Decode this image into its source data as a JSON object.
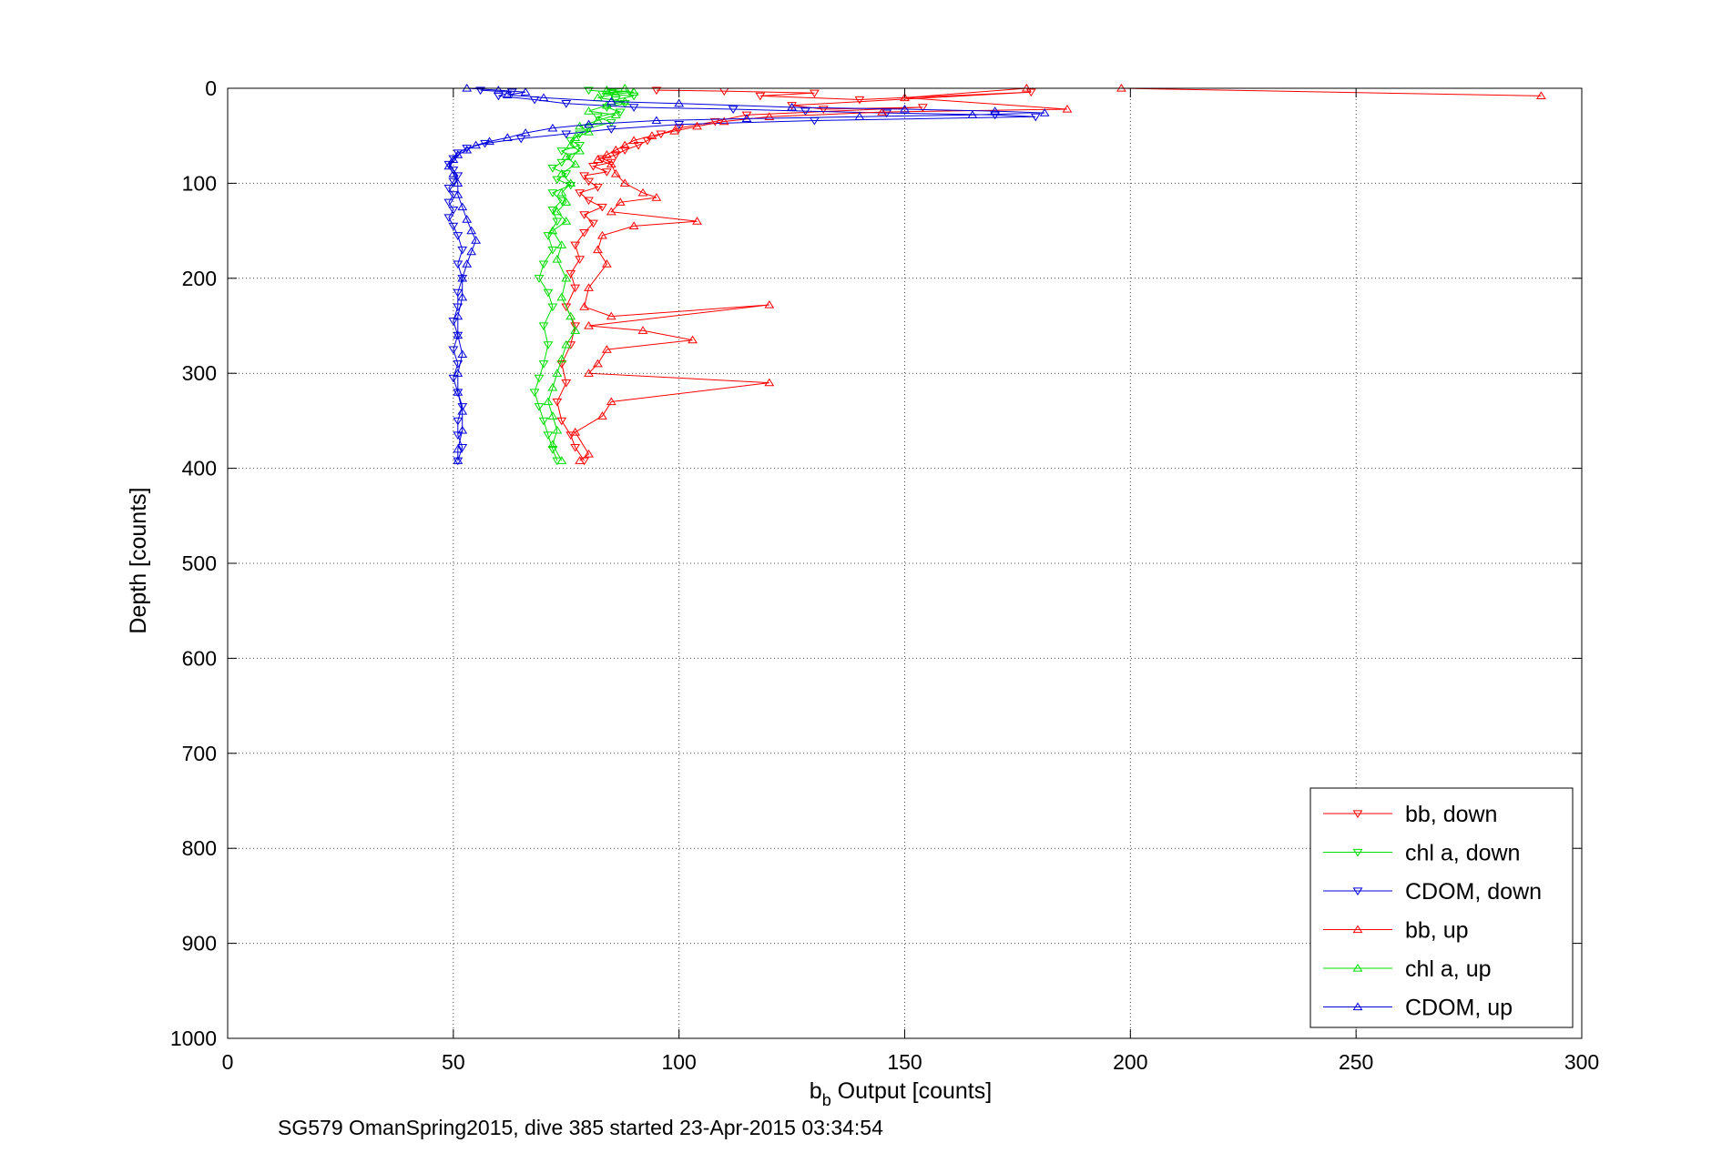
{
  "chart_data": {
    "type": "line",
    "xlabel_main": "b",
    "xlabel_sub": "b",
    "xlabel_rest": " Output [counts]",
    "ylabel": "Depth [counts]",
    "caption": "SG579 OmanSpring2015, dive 385 started 23-Apr-2015 03:34:54",
    "xlim": [
      0,
      300
    ],
    "ylim": [
      0,
      1000
    ],
    "y_reversed": true,
    "grid": true,
    "legend_position": "bottom-right",
    "xticks": [
      "0",
      "50",
      "100",
      "150",
      "200",
      "250",
      "300"
    ],
    "yticks": [
      "0",
      "100",
      "200",
      "300",
      "400",
      "500",
      "600",
      "700",
      "800",
      "900",
      "1000"
    ],
    "series": [
      {
        "name": "bb, down",
        "color": "#ff0000",
        "marker": "triangle-down",
        "points": [
          [
            95,
            2
          ],
          [
            110,
            3
          ],
          [
            130,
            5
          ],
          [
            118,
            8
          ],
          [
            140,
            12
          ],
          [
            178,
            4
          ],
          [
            125,
            18
          ],
          [
            132,
            22
          ],
          [
            154,
            20
          ],
          [
            115,
            28
          ],
          [
            108,
            35
          ],
          [
            100,
            42
          ],
          [
            96,
            48
          ],
          [
            93,
            55
          ],
          [
            91,
            60
          ],
          [
            88,
            65
          ],
          [
            86,
            70
          ],
          [
            83,
            74
          ],
          [
            85,
            78
          ],
          [
            81,
            82
          ],
          [
            84,
            88
          ],
          [
            79,
            92
          ],
          [
            80,
            98
          ],
          [
            82,
            104
          ],
          [
            78,
            110
          ],
          [
            80,
            118
          ],
          [
            83,
            125
          ],
          [
            79,
            133
          ],
          [
            81,
            142
          ],
          [
            79,
            152
          ],
          [
            77,
            165
          ],
          [
            78,
            180
          ],
          [
            76,
            195
          ],
          [
            77,
            210
          ],
          [
            75,
            230
          ],
          [
            77,
            250
          ],
          [
            76,
            270
          ],
          [
            74,
            290
          ],
          [
            75,
            310
          ],
          [
            73,
            330
          ],
          [
            74,
            350
          ],
          [
            76,
            365
          ],
          [
            77,
            378
          ],
          [
            79,
            392
          ]
        ]
      },
      {
        "name": "chl a, down",
        "color": "#00dd00",
        "marker": "triangle-down",
        "points": [
          [
            80,
            2
          ],
          [
            85,
            4
          ],
          [
            89,
            3
          ],
          [
            83,
            6
          ],
          [
            90,
            8
          ],
          [
            86,
            12
          ],
          [
            88,
            16
          ],
          [
            84,
            20
          ],
          [
            87,
            25
          ],
          [
            82,
            30
          ],
          [
            85,
            36
          ],
          [
            80,
            42
          ],
          [
            78,
            48
          ],
          [
            76,
            55
          ],
          [
            78,
            60
          ],
          [
            74,
            66
          ],
          [
            76,
            72
          ],
          [
            74,
            78
          ],
          [
            72,
            84
          ],
          [
            75,
            90
          ],
          [
            73,
            96
          ],
          [
            76,
            102
          ],
          [
            72,
            110
          ],
          [
            74,
            118
          ],
          [
            72,
            128
          ],
          [
            73,
            140
          ],
          [
            71,
            155
          ],
          [
            72,
            170
          ],
          [
            70,
            185
          ],
          [
            69,
            200
          ],
          [
            71,
            215
          ],
          [
            72,
            230
          ],
          [
            70,
            250
          ],
          [
            71,
            270
          ],
          [
            70,
            290
          ],
          [
            69,
            305
          ],
          [
            68,
            320
          ],
          [
            69,
            335
          ],
          [
            70,
            350
          ],
          [
            71,
            365
          ],
          [
            72,
            380
          ],
          [
            73,
            392
          ]
        ]
      },
      {
        "name": "CDOM, down",
        "color": "#0000dd",
        "marker": "triangle-down",
        "points": [
          [
            56,
            2
          ],
          [
            63,
            4
          ],
          [
            60,
            8
          ],
          [
            68,
            12
          ],
          [
            75,
            16
          ],
          [
            90,
            20
          ],
          [
            112,
            22
          ],
          [
            128,
            24
          ],
          [
            146,
            26
          ],
          [
            170,
            28
          ],
          [
            179,
            30
          ],
          [
            130,
            34
          ],
          [
            100,
            38
          ],
          [
            85,
            43
          ],
          [
            75,
            48
          ],
          [
            65,
            53
          ],
          [
            57,
            58
          ],
          [
            53,
            63
          ],
          [
            51,
            68
          ],
          [
            50,
            74
          ],
          [
            49,
            80
          ],
          [
            50,
            86
          ],
          [
            51,
            92
          ],
          [
            50,
            98
          ],
          [
            49,
            105
          ],
          [
            50,
            112
          ],
          [
            49,
            120
          ],
          [
            50,
            128
          ],
          [
            49,
            136
          ],
          [
            50,
            145
          ],
          [
            51,
            155
          ],
          [
            52,
            170
          ],
          [
            51,
            185
          ],
          [
            52,
            200
          ],
          [
            51,
            215
          ],
          [
            51,
            230
          ],
          [
            50,
            245
          ],
          [
            51,
            260
          ],
          [
            50,
            275
          ],
          [
            51,
            290
          ],
          [
            50,
            305
          ],
          [
            51,
            320
          ],
          [
            52,
            335
          ],
          [
            51,
            350
          ],
          [
            51,
            365
          ],
          [
            52,
            378
          ],
          [
            51,
            392
          ]
        ]
      },
      {
        "name": "bb, up",
        "color": "#ff0000",
        "marker": "triangle-up",
        "points": [
          [
            291,
            8
          ],
          [
            198,
            0
          ],
          [
            177,
            0
          ],
          [
            150,
            10
          ],
          [
            186,
            22
          ],
          [
            145,
            25
          ],
          [
            120,
            30
          ],
          [
            110,
            35
          ],
          [
            104,
            40
          ],
          [
            99,
            45
          ],
          [
            94,
            50
          ],
          [
            90,
            55
          ],
          [
            88,
            60
          ],
          [
            86,
            65
          ],
          [
            84,
            70
          ],
          [
            82,
            75
          ],
          [
            85,
            80
          ],
          [
            86,
            90
          ],
          [
            88,
            100
          ],
          [
            92,
            110
          ],
          [
            95,
            115
          ],
          [
            87,
            120
          ],
          [
            85,
            130
          ],
          [
            104,
            140
          ],
          [
            90,
            145
          ],
          [
            83,
            155
          ],
          [
            82,
            170
          ],
          [
            84,
            185
          ],
          [
            80,
            210
          ],
          [
            79,
            230
          ],
          [
            85,
            240
          ],
          [
            120,
            228
          ],
          [
            80,
            250
          ],
          [
            92,
            255
          ],
          [
            103,
            265
          ],
          [
            84,
            275
          ],
          [
            82,
            290
          ],
          [
            80,
            300
          ],
          [
            120,
            310
          ],
          [
            85,
            330
          ],
          [
            83,
            345
          ],
          [
            77,
            362
          ],
          [
            80,
            385
          ],
          [
            78,
            392
          ]
        ]
      },
      {
        "name": "chl a, up",
        "color": "#00dd00",
        "marker": "triangle-up",
        "points": [
          [
            88,
            0
          ],
          [
            84,
            2
          ],
          [
            90,
            4
          ],
          [
            86,
            6
          ],
          [
            82,
            10
          ],
          [
            88,
            14
          ],
          [
            84,
            18
          ],
          [
            80,
            24
          ],
          [
            86,
            28
          ],
          [
            82,
            34
          ],
          [
            78,
            40
          ],
          [
            80,
            46
          ],
          [
            77,
            52
          ],
          [
            76,
            60
          ],
          [
            78,
            66
          ],
          [
            75,
            72
          ],
          [
            77,
            80
          ],
          [
            74,
            90
          ],
          [
            76,
            100
          ],
          [
            74,
            110
          ],
          [
            75,
            120
          ],
          [
            73,
            130
          ],
          [
            75,
            140
          ],
          [
            72,
            150
          ],
          [
            74,
            165
          ],
          [
            73,
            180
          ],
          [
            75,
            200
          ],
          [
            74,
            220
          ],
          [
            76,
            240
          ],
          [
            77,
            255
          ],
          [
            75,
            270
          ],
          [
            74,
            285
          ],
          [
            73,
            300
          ],
          [
            72,
            315
          ],
          [
            71,
            330
          ],
          [
            72,
            345
          ],
          [
            73,
            360
          ],
          [
            72,
            375
          ],
          [
            74,
            392
          ]
        ]
      },
      {
        "name": "CDOM, up",
        "color": "#0000dd",
        "marker": "triangle-up",
        "points": [
          [
            53,
            0
          ],
          [
            60,
            2
          ],
          [
            66,
            4
          ],
          [
            62,
            7
          ],
          [
            70,
            10
          ],
          [
            85,
            14
          ],
          [
            100,
            16
          ],
          [
            125,
            20
          ],
          [
            150,
            22
          ],
          [
            170,
            24
          ],
          [
            181,
            26
          ],
          [
            165,
            28
          ],
          [
            140,
            30
          ],
          [
            115,
            32
          ],
          [
            95,
            34
          ],
          [
            80,
            38
          ],
          [
            72,
            42
          ],
          [
            66,
            47
          ],
          [
            62,
            52
          ],
          [
            58,
            56
          ],
          [
            55,
            60
          ],
          [
            53,
            65
          ],
          [
            51,
            70
          ],
          [
            50,
            75
          ],
          [
            49,
            82
          ],
          [
            50,
            90
          ],
          [
            51,
            100
          ],
          [
            51,
            112
          ],
          [
            52,
            125
          ],
          [
            53,
            138
          ],
          [
            54,
            150
          ],
          [
            55,
            160
          ],
          [
            54,
            172
          ],
          [
            53,
            185
          ],
          [
            52,
            200
          ],
          [
            52,
            220
          ],
          [
            51,
            240
          ],
          [
            51,
            260
          ],
          [
            52,
            280
          ],
          [
            51,
            300
          ],
          [
            51,
            320
          ],
          [
            52,
            340
          ],
          [
            52,
            360
          ],
          [
            51,
            380
          ],
          [
            51,
            392
          ]
        ]
      }
    ]
  }
}
